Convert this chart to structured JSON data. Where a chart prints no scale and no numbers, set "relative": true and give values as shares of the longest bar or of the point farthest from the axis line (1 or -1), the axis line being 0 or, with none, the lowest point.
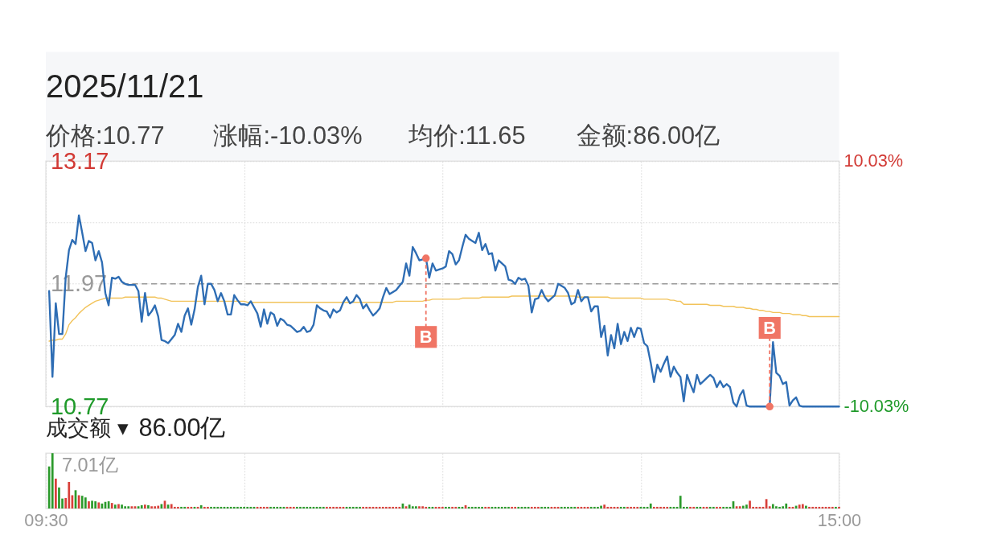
{
  "chart_data": [
    {
      "type": "line",
      "title": "2025/11/21",
      "annotations": [
        "价格:10.77",
        "涨幅:-10.03%",
        "均价:11.65",
        "金额:86.00亿"
      ],
      "categories": [
        null,
        null,
        null,
        null,
        null,
        null,
        null,
        null,
        null,
        null,
        null,
        null,
        null,
        null,
        null,
        null,
        null,
        null,
        null,
        null,
        null,
        null,
        null,
        null,
        null,
        null,
        null,
        null,
        null,
        null,
        null,
        null,
        null,
        null,
        null,
        null,
        null,
        null,
        null,
        null,
        null,
        null,
        null,
        null,
        null,
        null,
        null,
        null,
        null,
        null,
        null,
        null,
        null,
        null,
        null,
        null,
        null,
        null,
        null,
        null,
        null,
        null,
        null,
        null,
        null,
        null,
        null,
        null,
        null,
        null,
        null,
        null,
        null,
        null,
        null,
        null,
        null,
        null,
        null,
        null,
        null,
        null,
        null,
        null,
        null,
        null,
        null,
        null,
        null,
        null,
        null,
        null,
        null,
        null,
        null,
        null,
        null,
        null,
        null,
        null,
        null,
        null,
        null,
        null,
        null,
        null,
        null,
        null,
        null,
        null,
        null,
        null,
        null,
        null,
        null,
        null,
        null,
        null,
        null,
        null,
        null,
        null,
        null,
        null,
        null,
        null,
        null,
        null,
        null,
        null,
        null,
        null,
        null,
        null,
        null,
        null,
        null,
        null,
        null,
        null,
        null,
        null,
        null,
        null,
        null,
        null,
        null,
        null,
        null,
        null,
        null,
        null,
        null,
        null,
        null,
        null,
        null,
        null,
        null,
        null,
        null,
        null,
        null,
        null,
        null,
        null,
        null,
        null,
        null,
        null,
        null,
        null,
        null,
        null,
        null,
        null,
        null,
        null,
        null,
        null,
        null,
        null,
        null,
        null,
        null,
        null,
        null,
        null,
        null,
        null,
        null,
        null,
        null,
        null,
        null,
        null,
        null,
        null,
        null,
        null,
        null,
        null,
        null,
        null,
        null,
        null,
        null,
        null,
        null,
        null,
        null,
        null,
        null,
        null,
        null,
        null,
        null,
        null,
        null,
        null,
        null,
        null,
        null,
        null,
        null,
        null,
        null,
        null,
        null,
        null,
        null,
        null,
        null,
        null,
        null,
        null,
        null,
        null,
        null,
        null,
        null
      ],
      "series": [
        {
          "color": "#2e6db4",
          "values": [
            null,
            11.9,
            11.06,
            11.78,
            11.48,
            11.48,
            12.03,
            12.3,
            12.4,
            12.36,
            12.64,
            12.47,
            12.29,
            12.39,
            12.37,
            12.2,
            12.29,
            12.18,
            11.88,
            11.76,
            12.03,
            12.02,
            12.04,
            11.99,
            11.97,
            11.96,
            11.96,
            11.96,
            11.9,
            11.6,
            11.88,
            11.66,
            11.7,
            11.76,
            11.65,
            11.42,
            11.41,
            11.39,
            11.43,
            11.47,
            11.58,
            11.5,
            11.66,
            11.73,
            11.57,
            11.72,
            11.94,
            12.05,
            11.77,
            11.97,
            11.97,
            11.91,
            11.8,
            11.88,
            11.8,
            11.67,
            11.67,
            11.86,
            11.81,
            11.77,
            11.77,
            11.76,
            11.8,
            11.74,
            11.68,
            11.55,
            11.72,
            11.58,
            11.69,
            11.67,
            11.56,
            11.63,
            11.61,
            11.57,
            11.56,
            11.53,
            11.5,
            11.51,
            11.55,
            11.5,
            11.51,
            11.57,
            11.76,
            11.73,
            11.71,
            11.7,
            11.64,
            11.72,
            11.69,
            11.71,
            11.79,
            11.84,
            11.78,
            11.8,
            11.86,
            11.82,
            11.73,
            11.77,
            11.71,
            11.66,
            11.69,
            11.73,
            11.84,
            11.93,
            11.87,
            11.89,
            11.91,
            11.95,
            11.99,
            12.17,
            12.05,
            12.33,
            12.27,
            12.2,
            12.21,
            12.22,
            12.03,
            12.17,
            12.1,
            12.11,
            12.12,
            12.14,
            12.29,
            12.26,
            12.16,
            12.2,
            12.33,
            12.45,
            12.41,
            12.39,
            12.37,
            12.47,
            12.3,
            12.36,
            12.26,
            12.27,
            12.1,
            12.2,
            12.17,
            12.14,
            12.01,
            12.0,
            11.97,
            12.03,
            12.01,
            12.02,
            11.95,
            11.69,
            11.82,
            11.83,
            11.91,
            11.84,
            11.8,
            11.83,
            11.86,
            11.97,
            11.95,
            11.93,
            11.88,
            11.77,
            11.79,
            11.91,
            11.8,
            11.84,
            11.84,
            11.7,
            11.75,
            11.75,
            11.45,
            11.56,
            11.27,
            11.47,
            11.34,
            11.58,
            11.38,
            11.5,
            11.41,
            11.54,
            11.45,
            11.54,
            11.53,
            11.39,
            11.36,
            11.2,
            11.01,
            11.18,
            11.11,
            11.19,
            11.26,
            11.06,
            11.16,
            11.1,
            11.06,
            10.82,
            11.08,
            10.99,
            10.91,
            11.08,
            10.99,
            11.02,
            11.05,
            11.08,
            11.05,
            10.96,
            11.02,
            10.96,
            10.99,
            10.96,
            10.81,
            10.77,
            10.88,
            10.93,
            10.78,
            10.77,
            10.77,
            10.77,
            10.77,
            10.77,
            10.77,
            10.77,
            11.4,
            11.1,
            11.07,
            10.99,
            11.01,
            10.78,
            10.83,
            10.86,
            10.78,
            10.77,
            10.77,
            10.77,
            10.77,
            10.77,
            10.77,
            10.77,
            10.77,
            10.77,
            10.77,
            10.77,
            10.77
          ]
        },
        {
          "color": "#f2c35a",
          "values": [
            null,
            11.41,
            11.42,
            11.42,
            11.43,
            11.43,
            11.48,
            11.57,
            11.61,
            11.64,
            11.68,
            11.71,
            11.74,
            11.76,
            11.78,
            11.8,
            11.81,
            11.82,
            11.83,
            11.83,
            11.83,
            11.83,
            11.83,
            11.83,
            11.84,
            11.84,
            11.84,
            11.84,
            11.84,
            11.84,
            11.84,
            11.84,
            11.84,
            11.84,
            11.83,
            11.83,
            11.82,
            11.81,
            11.8,
            11.8,
            11.8,
            11.8,
            11.8,
            11.8,
            11.8,
            11.8,
            11.8,
            11.8,
            11.8,
            11.8,
            11.8,
            11.8,
            11.8,
            11.8,
            11.8,
            11.8,
            11.8,
            11.8,
            11.8,
            11.8,
            11.8,
            11.79,
            11.79,
            11.79,
            11.79,
            11.79,
            11.79,
            11.79,
            11.79,
            11.79,
            11.79,
            11.79,
            11.79,
            11.79,
            11.79,
            11.79,
            11.79,
            11.79,
            11.79,
            11.79,
            11.79,
            11.79,
            11.79,
            11.79,
            11.79,
            11.79,
            11.79,
            11.79,
            11.79,
            11.79,
            11.79,
            11.79,
            11.79,
            11.79,
            11.79,
            11.79,
            11.79,
            11.79,
            11.79,
            11.79,
            11.79,
            11.79,
            11.79,
            11.79,
            11.79,
            11.79,
            11.8,
            11.8,
            11.8,
            11.8,
            11.8,
            11.8,
            11.8,
            11.8,
            11.8,
            11.81,
            11.81,
            11.82,
            11.82,
            11.82,
            11.82,
            11.82,
            11.82,
            11.82,
            11.82,
            11.82,
            11.83,
            11.83,
            11.83,
            11.83,
            11.83,
            11.83,
            11.84,
            11.84,
            11.84,
            11.84,
            11.84,
            11.84,
            11.84,
            11.84,
            11.84,
            11.85,
            11.85,
            11.85,
            11.85,
            11.85,
            11.85,
            11.85,
            11.85,
            11.85,
            11.85,
            11.85,
            11.85,
            11.85,
            11.85,
            11.85,
            11.85,
            11.85,
            11.85,
            11.85,
            11.85,
            11.84,
            11.84,
            11.84,
            11.84,
            11.84,
            11.84,
            11.84,
            11.84,
            11.84,
            11.84,
            11.83,
            11.83,
            11.83,
            11.83,
            11.83,
            11.83,
            11.83,
            11.83,
            11.83,
            11.83,
            11.82,
            11.82,
            11.82,
            11.82,
            11.82,
            11.82,
            11.82,
            11.82,
            11.81,
            11.81,
            11.8,
            11.8,
            11.77,
            11.77,
            11.77,
            11.77,
            11.77,
            11.77,
            11.77,
            11.77,
            11.76,
            11.76,
            11.76,
            11.76,
            11.75,
            11.75,
            11.75,
            11.75,
            11.74,
            11.74,
            11.74,
            11.73,
            11.73,
            11.72,
            11.72,
            11.71,
            11.71,
            11.7,
            11.7,
            11.69,
            11.69,
            11.69,
            11.68,
            11.68,
            11.68,
            11.67,
            11.67,
            11.67,
            11.66,
            11.66,
            11.65,
            11.65,
            11.65,
            11.65,
            11.65,
            11.65,
            11.65,
            11.65,
            11.65,
            11.65
          ]
        },
        {
          "type": "scatter",
          "name": "B",
          "color": "#f07565",
          "values": [
            null,
            null,
            null,
            null,
            null,
            null,
            null,
            null,
            null,
            null,
            null,
            null,
            null,
            null,
            null,
            null,
            null,
            null,
            null,
            null,
            null,
            null,
            null,
            null,
            null,
            null,
            null,
            null,
            null,
            null,
            null,
            null,
            null,
            null,
            null,
            null,
            null,
            null,
            null,
            null,
            null,
            null,
            null,
            null,
            null,
            null,
            null,
            null,
            null,
            null,
            null,
            null,
            null,
            null,
            null,
            null,
            null,
            null,
            null,
            null,
            null,
            null,
            null,
            null,
            null,
            null,
            null,
            null,
            null,
            null,
            null,
            null,
            null,
            null,
            null,
            null,
            null,
            null,
            null,
            null,
            null,
            null,
            null,
            null,
            null,
            null,
            null,
            null,
            null,
            null,
            null,
            null,
            null,
            null,
            null,
            null,
            null,
            null,
            null,
            null,
            null,
            null,
            null,
            null,
            null,
            null,
            null,
            null,
            null,
            null,
            null,
            null,
            null,
            null,
            null,
            12.22,
            null,
            null,
            null,
            null,
            null,
            null,
            null,
            null,
            null,
            null,
            null,
            null,
            null,
            null,
            null,
            null,
            null,
            null,
            null,
            null,
            null,
            null,
            null,
            null,
            null,
            null,
            null,
            null,
            null,
            null,
            null,
            null,
            null,
            null,
            null,
            null,
            null,
            null,
            null,
            null,
            null,
            null,
            null,
            null,
            null,
            null,
            null,
            null,
            null,
            null,
            null,
            null,
            null,
            null,
            null,
            null,
            null,
            null,
            null,
            null,
            null,
            null,
            null,
            null,
            null,
            null,
            null,
            null,
            null,
            null,
            null,
            null,
            null,
            null,
            null,
            null,
            null,
            null,
            null,
            null,
            null,
            null,
            null,
            null,
            null,
            null,
            null,
            null,
            null,
            null,
            null,
            null,
            null,
            null,
            null,
            null,
            null,
            null,
            null,
            null,
            null,
            null,
            null,
            10.77,
            null,
            null,
            null,
            null,
            null,
            null,
            null,
            null,
            null,
            null,
            null,
            null,
            null,
            null,
            null,
            null,
            null,
            null,
            null,
            null,
            null
          ]
        }
      ],
      "ylim": [
        10.77,
        13.17
      ],
      "yticks": [
        13.17,
        {
          "value": 12.57,
          "label": null
        },
        11.97,
        {
          "value": 11.37,
          "label": null
        },
        10.77
      ],
      "y2lim": [
        -10.03,
        10.03
      ],
      "y2ticks": [
        {
          "value": 10.03,
          "label": "10.03%"
        },
        {
          "value": -10.03,
          "label": "-10.03%"
        }
      ],
      "ref_lines": [
        {
          "axis": "y2",
          "value": 0,
          "color": "#9a9a9a",
          "line_style": "dashed"
        }
      ],
      "grid": true,
      "tick_labels": "y"
    },
    {
      "type": "bar",
      "title": "成交额 ▾",
      "subtitle": "86.00亿",
      "annotations": [
        "7.01亿"
      ],
      "relative": true,
      "categories": [
        "09:30",
        null,
        null,
        null,
        null,
        null,
        null,
        null,
        null,
        null,
        null,
        null,
        null,
        null,
        null,
        null,
        null,
        null,
        null,
        null,
        null,
        null,
        null,
        null,
        null,
        null,
        null,
        null,
        null,
        null,
        null,
        null,
        null,
        null,
        null,
        null,
        null,
        null,
        null,
        null,
        null,
        null,
        null,
        null,
        null,
        null,
        null,
        null,
        null,
        null,
        null,
        null,
        null,
        null,
        null,
        null,
        null,
        null,
        null,
        null,
        null,
        null,
        null,
        null,
        null,
        null,
        null,
        null,
        null,
        null,
        null,
        null,
        null,
        null,
        null,
        null,
        null,
        null,
        null,
        null,
        null,
        null,
        null,
        null,
        null,
        null,
        null,
        null,
        null,
        null,
        null,
        null,
        null,
        null,
        null,
        null,
        null,
        null,
        null,
        null,
        null,
        null,
        null,
        null,
        null,
        null,
        null,
        null,
        null,
        null,
        null,
        null,
        null,
        null,
        null,
        null,
        null,
        null,
        null,
        null,
        null,
        null,
        null,
        null,
        null,
        null,
        null,
        null,
        null,
        null,
        null,
        null,
        null,
        null,
        null,
        null,
        null,
        null,
        null,
        null,
        null,
        null,
        null,
        null,
        null,
        null,
        null,
        null,
        null,
        null,
        null,
        null,
        null,
        null,
        null,
        null,
        null,
        null,
        null,
        null,
        null,
        null,
        null,
        null,
        null,
        null,
        null,
        null,
        null,
        null,
        null,
        null,
        null,
        null,
        null,
        null,
        null,
        null,
        null,
        null,
        null,
        null,
        null,
        null,
        null,
        null,
        null,
        null,
        null,
        null,
        null,
        null,
        null,
        null,
        null,
        null,
        null,
        null,
        null,
        null,
        null,
        null,
        null,
        null,
        null,
        null,
        null,
        null,
        null,
        null,
        null,
        null,
        null,
        null,
        null,
        null,
        null,
        null,
        null,
        null,
        null,
        null,
        null,
        null,
        null,
        null,
        null,
        null,
        null,
        null,
        null,
        null,
        null,
        null,
        null,
        null,
        null,
        null,
        null,
        null,
        "15:00"
      ],
      "values": [
        null,
        0.76,
        1.0,
        0.54,
        0.38,
        0.18,
        0.19,
        0.48,
        0.24,
        0.33,
        0.24,
        0.23,
        0.2,
        0.13,
        0.14,
        0.13,
        0.11,
        0.09,
        0.12,
        0.13,
        0.1,
        0.07,
        0.08,
        0.07,
        0.04,
        0.04,
        0.04,
        0.04,
        0.04,
        0.06,
        0.07,
        0.06,
        0.04,
        0.04,
        0.05,
        0.08,
        0.14,
        0.07,
        0.08,
        0.03,
        0.03,
        0.03,
        0.03,
        0.03,
        0.03,
        0.03,
        0.03,
        0.06,
        0.03,
        0.03,
        0.03,
        0.03,
        0.03,
        0.03,
        0.03,
        0.03,
        0.03,
        0.03,
        0.03,
        0.03,
        0.03,
        0.03,
        0.03,
        0.03,
        0.03,
        0.03,
        0.03,
        0.03,
        0.03,
        0.03,
        0.03,
        0.03,
        0.03,
        0.03,
        0.03,
        0.03,
        0.03,
        0.03,
        0.03,
        0.03,
        0.03,
        0.03,
        0.03,
        0.03,
        0.03,
        0.03,
        0.03,
        0.03,
        0.03,
        0.03,
        0.03,
        0.03,
        0.03,
        0.03,
        0.03,
        0.03,
        0.03,
        0.03,
        0.03,
        0.03,
        0.03,
        0.03,
        0.03,
        0.03,
        0.03,
        0.03,
        0.03,
        0.03,
        0.09,
        0.04,
        0.07,
        0.04,
        0.04,
        0.04,
        0.04,
        0.03,
        0.03,
        0.03,
        0.03,
        0.03,
        0.03,
        0.03,
        0.03,
        0.03,
        0.03,
        0.03,
        0.03,
        0.06,
        0.03,
        0.03,
        0.03,
        0.03,
        0.03,
        0.03,
        0.03,
        0.03,
        0.03,
        0.03,
        0.03,
        0.03,
        0.03,
        0.03,
        0.03,
        0.03,
        0.03,
        0.03,
        0.03,
        0.03,
        0.03,
        0.03,
        0.03,
        0.03,
        0.03,
        0.03,
        0.03,
        0.03,
        0.03,
        0.03,
        0.03,
        0.03,
        0.03,
        0.03,
        0.03,
        0.03,
        0.03,
        0.03,
        0.03,
        0.03,
        0.05,
        0.07,
        0.03,
        0.03,
        0.03,
        0.03,
        0.03,
        0.03,
        0.03,
        0.03,
        0.03,
        0.03,
        0.03,
        0.03,
        0.03,
        0.09,
        0.03,
        0.03,
        0.03,
        0.03,
        0.03,
        0.03,
        0.03,
        0.03,
        0.23,
        0.03,
        0.03,
        0.03,
        0.03,
        0.03,
        0.03,
        0.03,
        0.03,
        0.03,
        0.03,
        0.03,
        0.03,
        0.03,
        0.03,
        0.03,
        0.13,
        0.04,
        0.04,
        0.05,
        0.07,
        0.14,
        0.03,
        0.03,
        0.03,
        0.03,
        0.17,
        0.04,
        0.08,
        0.04,
        0.03,
        0.04,
        0.09,
        0.03,
        0.03,
        0.05,
        0.07,
        0.08,
        0.05,
        0.03,
        0.03,
        0.03,
        0.03,
        0.03,
        0.03,
        0.03,
        0.03,
        0.03,
        0.03
      ],
      "colors": [
        null,
        "#2b9a2b",
        "#2b9a2b",
        "#d8403a",
        "#2b9a2b",
        "#2b9a2b",
        "#d8403a",
        "#d8403a",
        "#d8403a",
        "#2b9a2b",
        "#d8403a",
        "#2b9a2b",
        "#2b9a2b",
        "#d8403a",
        "#2b9a2b",
        "#2b9a2b",
        "#d8403a",
        "#2b9a2b",
        "#2b9a2b",
        "#2b9a2b",
        "#d8403a",
        "#2b9a2b",
        "#d8403a",
        "#2b9a2b",
        "#2b9a2b",
        "#2b9a2b",
        "#d8403a",
        "#d8403a",
        "#2b9a2b",
        "#2b9a2b",
        "#d8403a",
        "#2b9a2b",
        "#d8403a",
        "#d8403a",
        "#d8403a",
        "#2b9a2b",
        "#d8403a",
        "#2b9a2b",
        "#d8403a",
        "#d8403a",
        "#d8403a",
        "#2b9a2b",
        "#2b9a2b",
        "#d8403a",
        "#d8403a",
        "#2b9a2b",
        "#d8403a",
        "#2b9a2b",
        "#d8403a",
        "#d8403a",
        "#2b9a2b",
        "#2b9a2b",
        "#2b9a2b",
        "#2b9a2b",
        "#2b9a2b",
        "#2b9a2b",
        "#2b9a2b",
        "#2b9a2b",
        "#2b9a2b",
        "#2b9a2b",
        "#2b9a2b",
        "#2b9a2b",
        "#2b9a2b",
        "#2b9a2b",
        "#d8403a",
        "#d8403a",
        "#d8403a",
        "#d8403a",
        "#2b9a2b",
        "#2b9a2b",
        "#2b9a2b",
        "#2b9a2b",
        "#2b9a2b",
        "#d8403a",
        "#d8403a",
        "#d8403a",
        "#2b9a2b",
        "#2b9a2b",
        "#2b9a2b",
        "#2b9a2b",
        "#2b9a2b",
        "#2b9a2b",
        "#2b9a2b",
        "#2b9a2b",
        "#2b9a2b",
        "#d8403a",
        "#d8403a",
        "#d8403a",
        "#d8403a",
        "#d8403a",
        "#d8403a",
        "#2b9a2b",
        "#2b9a2b",
        "#2b9a2b",
        "#2b9a2b",
        "#2b9a2b",
        "#d8403a",
        "#d8403a",
        "#d8403a",
        "#d8403a",
        "#d8403a",
        "#d8403a",
        "#d8403a",
        "#d8403a",
        "#d8403a",
        "#d8403a",
        "#d8403a",
        "#d8403a",
        "#2b9a2b",
        "#d8403a",
        "#2b9a2b",
        "#2b9a2b",
        "#2b9a2b",
        "#d8403a",
        "#d8403a",
        "#d8403a",
        "#2b9a2b",
        "#2b9a2b",
        "#d8403a",
        "#d8403a",
        "#d8403a",
        "#2b9a2b",
        "#2b9a2b",
        "#d8403a",
        "#d8403a",
        "#2b9a2b",
        "#2b9a2b",
        "#d8403a",
        "#2b9a2b",
        "#2b9a2b",
        "#2b9a2b",
        "#2b9a2b",
        "#2b9a2b",
        "#d8403a",
        "#d8403a",
        "#2b9a2b",
        "#2b9a2b",
        "#2b9a2b",
        "#2b9a2b",
        "#2b9a2b",
        "#2b9a2b",
        "#d8403a",
        "#d8403a",
        "#2b9a2b",
        "#2b9a2b",
        "#2b9a2b",
        "#2b9a2b",
        "#d8403a",
        "#d8403a",
        "#d8403a",
        "#2b9a2b",
        "#2b9a2b",
        "#2b9a2b",
        "#d8403a",
        "#d8403a",
        "#d8403a",
        "#2b9a2b",
        "#2b9a2b",
        "#2b9a2b",
        "#2b9a2b",
        "#2b9a2b",
        "#d8403a",
        "#d8403a",
        "#d8403a",
        "#d8403a",
        "#2b9a2b",
        "#2b9a2b",
        "#2b9a2b",
        "#2b9a2b",
        "#d8403a",
        "#d8403a",
        "#d8403a",
        "#d8403a",
        "#d8403a",
        "#2b9a2b",
        "#2b9a2b",
        "#d8403a",
        "#d8403a",
        "#d8403a",
        "#d8403a",
        "#2b9a2b",
        "#2b9a2b",
        "#2b9a2b",
        "#2b9a2b",
        "#d8403a",
        "#d8403a",
        "#d8403a",
        "#d8403a",
        "#d8403a",
        "#2b9a2b",
        "#2b9a2b",
        "#2b9a2b",
        "#2b9a2b",
        "#2b9a2b",
        "#2b9a2b",
        "#d8403a",
        "#d8403a",
        "#2b9a2b",
        "#2b9a2b",
        "#d8403a",
        "#d8403a",
        "#2b9a2b",
        "#2b9a2b",
        "#d8403a",
        "#d8403a",
        "#2b9a2b",
        "#2b9a2b",
        "#2b9a2b",
        "#2b9a2b",
        "#d8403a",
        "#d8403a",
        "#2b9a2b",
        "#2b9a2b",
        "#d8403a",
        "#d8403a",
        "#d8403a",
        "#d8403a",
        "#d8403a",
        "#d8403a",
        "#d8403a",
        "#2b9a2b",
        "#2b9a2b",
        "#2b9a2b",
        "#2b9a2b",
        "#2b9a2b",
        "#d8403a",
        "#d8403a",
        "#2b9a2b",
        "#d8403a",
        "#d8403a",
        "#2b9a2b",
        "#d8403a",
        "#d8403a",
        "#d8403a",
        "#d8403a",
        "#d8403a",
        "#d8403a",
        "#d8403a",
        "#d8403a",
        "#2b9a2b",
        "#d8403a"
      ],
      "grid": "x",
      "tick_labels": "x"
    }
  ]
}
